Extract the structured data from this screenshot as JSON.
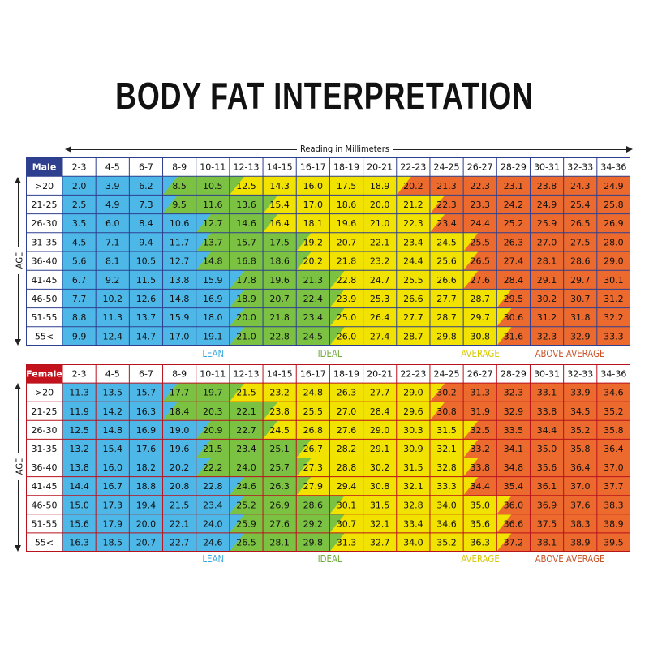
{
  "title": "BODY FAT INTERPRETATION",
  "x_axis_caption": "Reading in Millimeters",
  "y_axis_caption": "AGE",
  "chart_data": [
    {
      "type": "table",
      "group": "Male",
      "header_color": "#2f3f8f",
      "border_color": "#2f3f8f",
      "columns": [
        "2-3",
        "4-5",
        "6-7",
        "8-9",
        "10-11",
        "12-13",
        "14-15",
        "16-17",
        "18-19",
        "20-21",
        "22-23",
        "24-25",
        "26-27",
        "28-29",
        "30-31",
        "32-33",
        "34-36"
      ],
      "rows": [
        ">20",
        "21-25",
        "26-30",
        "31-35",
        "36-40",
        "41-45",
        "46-50",
        "51-55",
        "55<"
      ],
      "values": [
        [
          "2.0",
          "3.9",
          "6.2",
          "8.5",
          "10.5",
          "12.5",
          "14.3",
          "16.0",
          "17.5",
          "18.9",
          "20.2",
          "21.3",
          "22.3",
          "23.1",
          "23.8",
          "24.3",
          "24.9"
        ],
        [
          "2.5",
          "4.9",
          "7.3",
          "9.5",
          "11.6",
          "13.6",
          "15.4",
          "17.0",
          "18.6",
          "20.0",
          "21.2",
          "22.3",
          "23.3",
          "24.2",
          "24.9",
          "25.4",
          "25.8"
        ],
        [
          "3.5",
          "6.0",
          "8.4",
          "10.6",
          "12.7",
          "14.6",
          "16.4",
          "18.1",
          "19.6",
          "21.0",
          "22.3",
          "23.4",
          "24.4",
          "25.2",
          "25.9",
          "26.5",
          "26.9"
        ],
        [
          "4.5",
          "7.1",
          "9.4",
          "11.7",
          "13.7",
          "15.7",
          "17.5",
          "19.2",
          "20.7",
          "22.1",
          "23.4",
          "24.5",
          "25.5",
          "26.3",
          "27.0",
          "27.5",
          "28.0"
        ],
        [
          "5.6",
          "8.1",
          "10.5",
          "12.7",
          "14.8",
          "16.8",
          "18.6",
          "20.2",
          "21.8",
          "23.2",
          "24.4",
          "25.6",
          "26.5",
          "27.4",
          "28.1",
          "28.6",
          "29.0"
        ],
        [
          "6.7",
          "9.2",
          "11.5",
          "13.8",
          "15.9",
          "17.8",
          "19.6",
          "21.3",
          "22.8",
          "24.7",
          "25.5",
          "26.6",
          "27.6",
          "28.4",
          "29.1",
          "29.7",
          "30.1"
        ],
        [
          "7.7",
          "10.2",
          "12.6",
          "14.8",
          "16.9",
          "18.9",
          "20.7",
          "22.4",
          "23.9",
          "25.3",
          "26.6",
          "27.7",
          "28.7",
          "29.5",
          "30.2",
          "30.7",
          "31.2"
        ],
        [
          "8.8",
          "11.3",
          "13.7",
          "15.9",
          "18.0",
          "20.0",
          "21.8",
          "23.4",
          "25.0",
          "26.4",
          "27.7",
          "28.7",
          "29.7",
          "30.6",
          "31.2",
          "31.8",
          "32.2"
        ],
        [
          "9.9",
          "12.4",
          "14.7",
          "17.0",
          "19.1",
          "21.0",
          "22.8",
          "24.5",
          "26.0",
          "27.4",
          "28.7",
          "29.8",
          "30.8",
          "31.6",
          "32.3",
          "32.9",
          "33.3"
        ]
      ],
      "category_cutoffs": [
        [
          3,
          5,
          10
        ],
        [
          3,
          6,
          11
        ],
        [
          4,
          6,
          11
        ],
        [
          4,
          7,
          12
        ],
        [
          4,
          7,
          12
        ],
        [
          5,
          8,
          12
        ],
        [
          5,
          8,
          13
        ],
        [
          5,
          8,
          13
        ],
        [
          5,
          8,
          13
        ]
      ],
      "categories": [
        {
          "name": "LEAN",
          "color": "#4db8e8",
          "label_color": "#3aa8de"
        },
        {
          "name": "IDEAL",
          "color": "#7cc242",
          "label_color": "#6cab35"
        },
        {
          "name": "AVERAGE",
          "color": "#f2e200",
          "label_color": "#d9c900"
        },
        {
          "name": "ABOVE AVERAGE",
          "color": "#ec6a2d",
          "label_color": "#c8552a"
        }
      ]
    },
    {
      "type": "table",
      "group": "Female",
      "header_color": "#c4121d",
      "border_color": "#b8121d",
      "columns": [
        "2-3",
        "4-5",
        "6-7",
        "8-9",
        "10-11",
        "12-13",
        "14-15",
        "16-17",
        "18-19",
        "20-21",
        "22-23",
        "24-25",
        "26-27",
        "28-29",
        "30-31",
        "32-33",
        "34-36"
      ],
      "rows": [
        ">20",
        "21-25",
        "26-30",
        "31-35",
        "36-40",
        "41-45",
        "46-50",
        "51-55",
        "55<"
      ],
      "values": [
        [
          "11.3",
          "13.5",
          "15.7",
          "17.7",
          "19.7",
          "21.5",
          "23.2",
          "24.8",
          "26.3",
          "27.7",
          "29.0",
          "30.2",
          "31.3",
          "32.3",
          "33.1",
          "33.9",
          "34.6"
        ],
        [
          "11.9",
          "14.2",
          "16.3",
          "18.4",
          "20.3",
          "22.1",
          "23.8",
          "25.5",
          "27.0",
          "28.4",
          "29.6",
          "30.8",
          "31.9",
          "32.9",
          "33.8",
          "34.5",
          "35.2"
        ],
        [
          "12.5",
          "14.8",
          "16.9",
          "19.0",
          "20.9",
          "22.7",
          "24.5",
          "26.8",
          "27.6",
          "29.0",
          "30.3",
          "31.5",
          "32.5",
          "33.5",
          "34.4",
          "35.2",
          "35.8"
        ],
        [
          "13.2",
          "15.4",
          "17.6",
          "19.6",
          "21.5",
          "23.4",
          "25.1",
          "26.7",
          "28.2",
          "29.1",
          "30.9",
          "32.1",
          "33.2",
          "34.1",
          "35.0",
          "35.8",
          "36.4"
        ],
        [
          "13.8",
          "16.0",
          "18.2",
          "20.2",
          "22.2",
          "24.0",
          "25.7",
          "27.3",
          "28.8",
          "30.2",
          "31.5",
          "32.8",
          "33.8",
          "34.8",
          "35.6",
          "36.4",
          "37.0"
        ],
        [
          "14.4",
          "16.7",
          "18.8",
          "20.8",
          "22.8",
          "24.6",
          "26.3",
          "27.9",
          "29.4",
          "30.8",
          "32.1",
          "33.3",
          "34.4",
          "35.4",
          "36.1",
          "37.0",
          "37.7"
        ],
        [
          "15.0",
          "17.3",
          "19.4",
          "21.5",
          "23.4",
          "25.2",
          "26.9",
          "28.6",
          "30.1",
          "31.5",
          "32.8",
          "34.0",
          "35.0",
          "36.0",
          "36.9",
          "37.6",
          "38.3"
        ],
        [
          "15.6",
          "17.9",
          "20.0",
          "22.1",
          "24.0",
          "25.9",
          "27.6",
          "29.2",
          "30.7",
          "32.1",
          "33.4",
          "34.6",
          "35.6",
          "36.6",
          "37.5",
          "38.3",
          "38.9"
        ],
        [
          "16.3",
          "18.5",
          "20.7",
          "22.7",
          "24.6",
          "26.5",
          "28.1",
          "29.8",
          "31.3",
          "32.7",
          "34.0",
          "35.2",
          "36.3",
          "37.2",
          "38.1",
          "38.9",
          "39.5"
        ]
      ],
      "category_cutoffs": [
        [
          3,
          5,
          11
        ],
        [
          3,
          6,
          11
        ],
        [
          4,
          6,
          12
        ],
        [
          4,
          7,
          12
        ],
        [
          4,
          7,
          12
        ],
        [
          5,
          7,
          12
        ],
        [
          5,
          8,
          13
        ],
        [
          5,
          8,
          13
        ],
        [
          5,
          8,
          13
        ]
      ],
      "categories": [
        {
          "name": "LEAN",
          "color": "#4db8e8",
          "label_color": "#3aa8de"
        },
        {
          "name": "IDEAL",
          "color": "#7cc242",
          "label_color": "#6cab35"
        },
        {
          "name": "AVERAGE",
          "color": "#f2e200",
          "label_color": "#d9c900"
        },
        {
          "name": "ABOVE AVERAGE",
          "color": "#ec6a2d",
          "label_color": "#c8552a"
        }
      ]
    }
  ]
}
